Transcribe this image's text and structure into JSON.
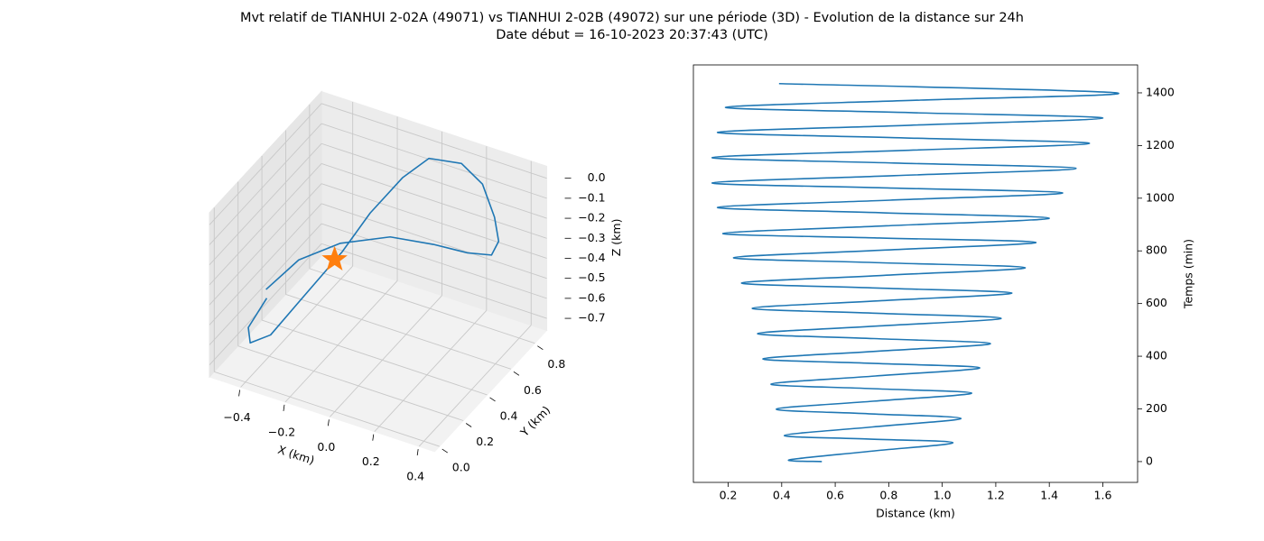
{
  "title": "Mvt relatif de TIANHUI 2-02A (49071) vs TIANHUI 2-02B (49072) sur une période (3D) - Evolution de la distance sur 24h",
  "subtitle": "Date début = 16-10-2023 20:37:43 (UTC)",
  "chart_data": [
    {
      "type": "line3d",
      "xlabel": "X (km)",
      "ylabel": "Y (km)",
      "zlabel": "Z (km)",
      "xlim": [
        -0.54,
        0.47
      ],
      "ylim": [
        -0.04,
        0.9
      ],
      "zlim": [
        -0.76,
        0.06
      ],
      "xticks": [
        {
          "value": -0.4,
          "label": "−0.4"
        },
        {
          "value": -0.2,
          "label": "−0.2"
        },
        {
          "value": 0,
          "label": "0.0"
        },
        0.2,
        0.4
      ],
      "yticks": [
        {
          "value": 0,
          "label": "0.0"
        },
        0.2,
        0.4,
        0.6,
        0.8
      ],
      "zticks": [
        {
          "value": 0,
          "label": "0.0"
        },
        {
          "value": -0.1,
          "label": "−0.1"
        },
        {
          "value": -0.2,
          "label": "−0.2"
        },
        {
          "value": -0.3,
          "label": "−0.3"
        },
        {
          "value": -0.4,
          "label": "−0.4"
        },
        {
          "value": -0.5,
          "label": "−0.5"
        },
        {
          "value": -0.6,
          "label": "−0.6"
        },
        {
          "value": -0.7,
          "label": "−0.7"
        }
      ],
      "grid": true,
      "series": [
        {
          "color": "#1f77b4",
          "x": [
            -0.42,
            -0.3,
            -0.14,
            0.03,
            0.17,
            0.27,
            0.34,
            0.34,
            0.3,
            0.23,
            0.13,
            -0.01,
            -0.09,
            -0.14,
            -0.17,
            -0.28,
            -0.33,
            -0.4,
            -0.43,
            -0.39
          ],
          "y": [
            0.21,
            0.26,
            0.31,
            0.41,
            0.51,
            0.61,
            0.68,
            0.74,
            0.78,
            0.81,
            0.82,
            0.81,
            0.74,
            0.56,
            0.38,
            0.21,
            0.08,
            0.04,
            0.08,
            0.16
          ],
          "z": [
            -0.44,
            -0.28,
            -0.17,
            -0.14,
            -0.19,
            -0.26,
            -0.29,
            -0.26,
            -0.18,
            -0.06,
            0.0,
            -0.02,
            -0.1,
            -0.18,
            -0.27,
            -0.46,
            -0.55,
            -0.59,
            -0.55,
            -0.44
          ]
        }
      ],
      "marker": {
        "x": 0,
        "y": 0,
        "z": 0,
        "color": "#ff7f0e"
      }
    },
    {
      "type": "line",
      "xlabel": "Distance (km)",
      "ylabel": "Temps (min)",
      "xlim": [
        0.07,
        1.73
      ],
      "ylim": [
        -79,
        1506
      ],
      "xticks": [
        0.2,
        0.4,
        0.6,
        0.8,
        {
          "value": 1.0,
          "label": "1.0"
        },
        1.2,
        1.4,
        1.6
      ],
      "yticks": [
        0,
        200,
        400,
        600,
        800,
        1000,
        1200,
        1400
      ],
      "yaxis_side": "right",
      "series": [
        {
          "color": "#1f77b4",
          "x": [
            0.55,
            0.43,
            0.735,
            1.04,
            0.725,
            0.41,
            0.74,
            1.07,
            0.725,
            0.38,
            0.745,
            1.11,
            0.735,
            0.36,
            0.75,
            1.14,
            0.735,
            0.33,
            0.755,
            1.18,
            0.745,
            0.31,
            0.765,
            1.22,
            0.755,
            0.29,
            0.775,
            1.26,
            0.755,
            0.25,
            0.78,
            1.31,
            0.765,
            0.22,
            0.785,
            1.35,
            0.765,
            0.18,
            0.79,
            1.4,
            0.78,
            0.16,
            0.805,
            1.45,
            0.795,
            0.14,
            0.82,
            1.5,
            0.82,
            0.14,
            0.845,
            1.55,
            0.855,
            0.16,
            0.88,
            1.6,
            0.895,
            0.19,
            0.92,
            1.65,
            0.39
          ],
          "y": [
            0,
            7,
            39.5,
            72,
            85.5,
            99,
            131.5,
            164,
            181.5,
            199,
            229.5,
            260,
            277,
            294,
            325,
            356,
            373,
            390,
            419,
            448,
            467,
            486,
            515,
            544,
            563,
            582,
            611,
            640,
            659,
            678,
            707,
            736,
            755,
            774,
            803,
            832,
            849,
            866,
            895,
            924,
            944.5,
            965,
            992.5,
            1020,
            1039,
            1058,
            1085.5,
            1113,
            1133.5,
            1154,
            1181,
            1208,
            1229,
            1250,
            1277,
            1304,
            1324.5,
            1345,
            1372.5,
            1400,
            1435
          ]
        }
      ]
    }
  ]
}
